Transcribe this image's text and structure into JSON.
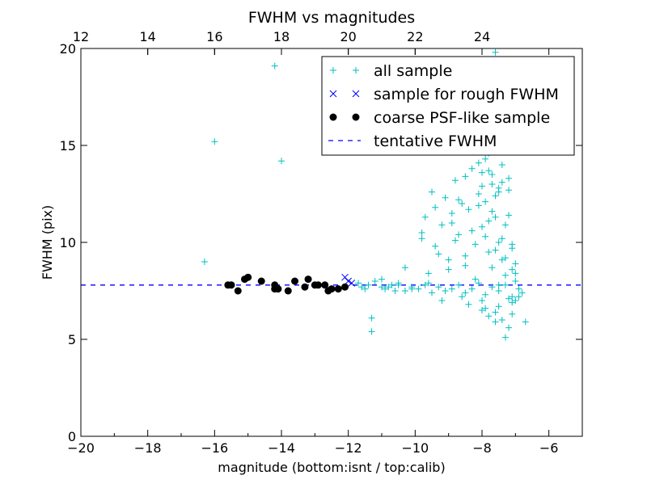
{
  "chart_data": {
    "type": "scatter",
    "title": "FWHM vs magnitudes",
    "xlabel": "magnitude (bottom:isnt / top:calib)",
    "ylabel": "FWHM (pix)",
    "xlim": [
      -20,
      -5
    ],
    "ylim": [
      0,
      20
    ],
    "x_ticks": [
      -20,
      -18,
      -16,
      -14,
      -12,
      -10,
      -8,
      -6
    ],
    "x_tick_labels": [
      "−20",
      "−18",
      "−16",
      "−14",
      "−12",
      "−10",
      "−8",
      "−6"
    ],
    "y_ticks": [
      0,
      5,
      10,
      15,
      20
    ],
    "y_tick_labels": [
      "0",
      "5",
      "10",
      "15",
      "20"
    ],
    "top_axis": {
      "offset": 32,
      "ticks": [
        12,
        14,
        16,
        18,
        20,
        22,
        24
      ],
      "tick_labels": [
        "12",
        "14",
        "16",
        "18",
        "20",
        "22",
        "24"
      ]
    },
    "grid": false,
    "legend_position": "top-right",
    "colors": {
      "all": "#00bfbf",
      "rough": "#0000ff",
      "coarse": "#000000",
      "tentative": "#0000ff"
    },
    "series": [
      {
        "name": "all sample",
        "marker": "plus",
        "x": [
          -16.3,
          -16.0,
          -14.2,
          -14.0,
          -11.7,
          -11.5,
          -11.3,
          -11.3,
          -11.0,
          -10.8,
          -10.6,
          -10.5,
          -10.3,
          -10.1,
          -9.8,
          -9.6,
          -11.6,
          -11.4,
          -11.2,
          -11.0,
          -10.9,
          -10.7,
          -10.5,
          -10.3,
          -10.1,
          -9.9,
          -9.7,
          -9.5,
          -9.3,
          -9.1,
          -8.9,
          -8.7,
          -8.5,
          -8.3,
          -8.1,
          -7.9,
          -7.7,
          -7.5,
          -7.3,
          -7.1,
          -6.9,
          -6.8,
          -9.8,
          -9.7,
          -9.5,
          -9.4,
          -9.3,
          -9.2,
          -9.1,
          -9.0,
          -8.9,
          -8.8,
          -8.7,
          -8.6,
          -8.5,
          -8.4,
          -8.3,
          -8.2,
          -8.1,
          -8.0,
          -7.9,
          -7.8,
          -7.7,
          -7.6,
          -7.5,
          -7.4,
          -7.3,
          -7.2,
          -7.1,
          -7.0,
          -9.6,
          -9.4,
          -9.2,
          -9.0,
          -8.8,
          -8.6,
          -8.5,
          -8.4,
          -8.2,
          -8.0,
          -7.9,
          -7.8,
          -7.7,
          -7.6,
          -7.5,
          -7.4,
          -7.3,
          -7.2,
          -7.1,
          -7.0,
          -8.9,
          -8.7,
          -8.5,
          -8.3,
          -8.1,
          -8.0,
          -7.9,
          -7.8,
          -7.7,
          -7.6,
          -7.5,
          -7.4,
          -7.3,
          -7.2,
          -7.1,
          -8.1,
          -8.0,
          -7.9,
          -7.8,
          -7.7,
          -7.6,
          -7.5,
          -7.4,
          -7.3,
          -7.2,
          -7.1,
          -7.0,
          -8.0,
          -7.9,
          -7.8,
          -7.7,
          -7.6,
          -7.5,
          -7.4,
          -7.3,
          -7.2,
          -7.1,
          -7.9,
          -7.8,
          -7.7,
          -7.6,
          -7.5,
          -7.4,
          -7.3,
          -7.2,
          -8.0,
          -7.8,
          -7.6,
          -7.4,
          -7.2,
          -7.0,
          -6.7,
          -6.9,
          -7.1,
          -7.3,
          -7.5
        ],
        "y": [
          9.0,
          15.2,
          19.1,
          14.2,
          7.9,
          7.6,
          6.1,
          5.4,
          8.1,
          7.7,
          7.5,
          7.8,
          8.7,
          7.6,
          10.2,
          7.9,
          7.7,
          7.8,
          8.0,
          7.7,
          7.6,
          7.8,
          7.9,
          7.5,
          7.7,
          7.6,
          7.8,
          7.4,
          7.7,
          7.5,
          7.6,
          7.8,
          7.4,
          7.6,
          7.9,
          7.3,
          7.7,
          7.5,
          7.8,
          7.2,
          7.6,
          7.4,
          10.5,
          11.3,
          12.6,
          11.8,
          9.4,
          10.9,
          12.3,
          9.1,
          11.5,
          13.2,
          10.4,
          12.0,
          8.8,
          11.7,
          13.8,
          9.9,
          12.5,
          10.8,
          14.3,
          11.1,
          13.5,
          9.6,
          12.8,
          10.2,
          14.8,
          11.4,
          9.7,
          8.9,
          8.4,
          9.8,
          7.0,
          8.6,
          10.1,
          7.2,
          9.3,
          6.8,
          8.1,
          7.0,
          6.6,
          9.5,
          8.7,
          6.4,
          7.8,
          9.1,
          8.3,
          7.1,
          6.9,
          8.0,
          11.0,
          12.2,
          13.4,
          10.6,
          11.9,
          12.9,
          10.3,
          13.7,
          11.6,
          12.4,
          10.0,
          13.1,
          9.2,
          12.7,
          8.6,
          14.1,
          13.6,
          12.1,
          14.6,
          13.0,
          11.3,
          12.6,
          14.0,
          10.9,
          13.3,
          9.9,
          8.4,
          15.6,
          16.4,
          17.2,
          15.1,
          18.3,
          16.8,
          17.9,
          15.9,
          16.1,
          15.3,
          18.7,
          19.4,
          17.6,
          19.8,
          17.0,
          18.1,
          19.2,
          16.6,
          6.5,
          6.2,
          5.9,
          6.0,
          5.6,
          7.0,
          5.9,
          7.2,
          6.3,
          5.1,
          6.7
        ]
      },
      {
        "name": "sample for rough FWHM",
        "marker": "x",
        "x": [
          -12.1,
          -12.0,
          -11.9
        ],
        "y": [
          8.2,
          8.0,
          7.9
        ]
      },
      {
        "name": "coarse PSF-like sample",
        "marker": "dot",
        "x": [
          -15.5,
          -15.6,
          -15.3,
          -15.1,
          -15.0,
          -14.6,
          -14.2,
          -14.1,
          -14.2,
          -13.8,
          -13.6,
          -13.3,
          -13.2,
          -13.0,
          -12.9,
          -12.7,
          -12.6,
          -12.5,
          -12.3,
          -12.1
        ],
        "y": [
          7.8,
          7.8,
          7.5,
          8.1,
          8.2,
          8.0,
          7.8,
          7.6,
          7.6,
          7.5,
          8.0,
          7.7,
          8.1,
          7.8,
          7.8,
          7.8,
          7.5,
          7.6,
          7.6,
          7.7
        ]
      },
      {
        "name": "tentative FWHM",
        "marker": "dashed-line",
        "y_const": 7.8
      }
    ]
  }
}
